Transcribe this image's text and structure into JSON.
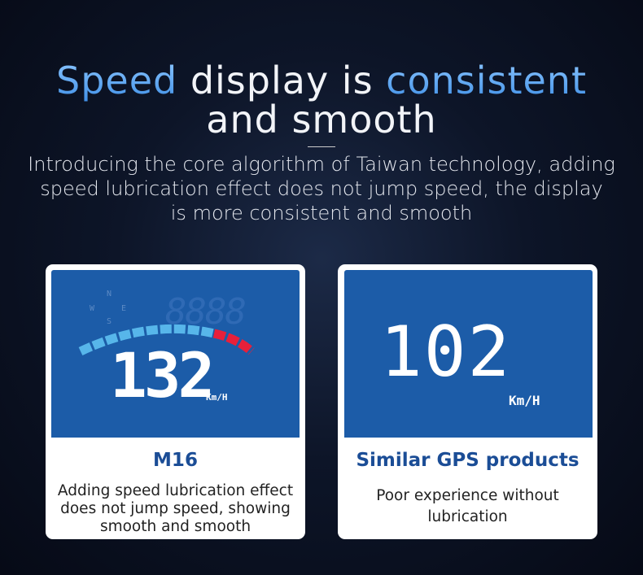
{
  "header": {
    "title": {
      "line1": [
        "Speed",
        "display is",
        "consistent"
      ],
      "line2": [
        "and",
        "smooth"
      ]
    },
    "subtitle_lines": [
      "Introducing the core algorithm of Taiwan technology, adding",
      "speed lubrication effect does not jump speed, the display",
      "is more consistent and smooth"
    ]
  },
  "cards": [
    {
      "screen": {
        "speed": "132",
        "unit": "Km/H",
        "compass": [
          "N",
          "W",
          "E",
          "S"
        ],
        "ghost": "8888"
      },
      "title": "M16",
      "description_lines": [
        "Adding speed lubrication effect",
        "does not jump speed, showing",
        "smooth and smooth"
      ]
    },
    {
      "screen": {
        "speed": "102",
        "unit": "Km/H"
      },
      "title": "Similar GPS products",
      "description_lines": [
        "Poor experience without",
        "lubrication"
      ]
    }
  ]
}
